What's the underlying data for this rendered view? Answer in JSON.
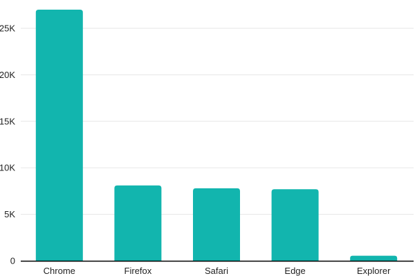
{
  "chart_data": {
    "type": "bar",
    "categories": [
      "Chrome",
      "Firefox",
      "Safari",
      "Edge",
      "Explorer"
    ],
    "values": [
      27000,
      8100,
      7800,
      7700,
      550
    ],
    "ylim": [
      0,
      27000
    ],
    "yticks": [
      {
        "value": 0,
        "label": "0"
      },
      {
        "value": 5000,
        "label": "5K"
      },
      {
        "value": 10000,
        "label": "10K"
      },
      {
        "value": 15000,
        "label": "15K"
      },
      {
        "value": 20000,
        "label": "20K"
      },
      {
        "value": 25000,
        "label": "25K"
      }
    ],
    "grid": true,
    "bar_color": "#12b5ae",
    "grid_color": "#e6e6e6",
    "axis_color": "#000000",
    "title": "",
    "xlabel": "",
    "ylabel": ""
  }
}
